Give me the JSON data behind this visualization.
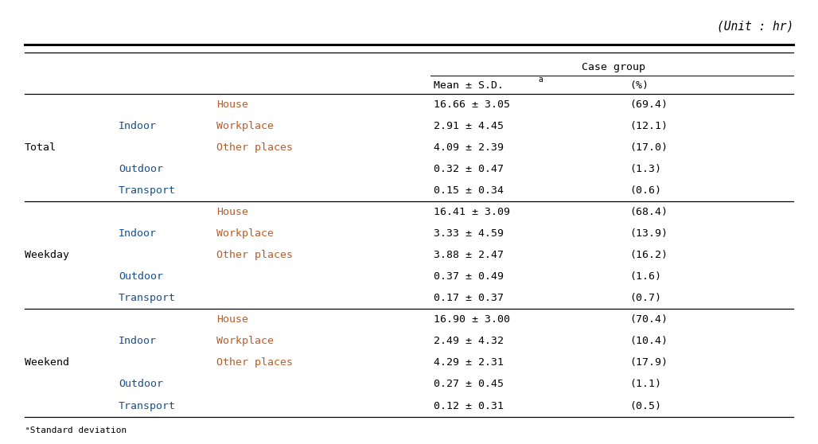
{
  "unit_label": "(Unit : hr)",
  "case_group_label": "Case group",
  "sd_superscript": "a",
  "rows": [
    {
      "group": "Total",
      "sub1": "",
      "sub2": "House",
      "mean_sd": "16.66 ± 3.05",
      "pct": "(69.4)"
    },
    {
      "group": "",
      "sub1": "Indoor",
      "sub2": "Workplace",
      "mean_sd": "2.91 ± 4.45",
      "pct": "(12.1)"
    },
    {
      "group": "",
      "sub1": "",
      "sub2": "Other places",
      "mean_sd": "4.09 ± 2.39",
      "pct": "(17.0)"
    },
    {
      "group": "",
      "sub1": "Outdoor",
      "sub2": "",
      "mean_sd": "0.32 ± 0.47",
      "pct": "(1.3)"
    },
    {
      "group": "",
      "sub1": "Transport",
      "sub2": "",
      "mean_sd": "0.15 ± 0.34",
      "pct": "(0.6)"
    },
    {
      "group": "Weekday",
      "sub1": "",
      "sub2": "House",
      "mean_sd": "16.41 ± 3.09",
      "pct": "(68.4)"
    },
    {
      "group": "",
      "sub1": "Indoor",
      "sub2": "Workplace",
      "mean_sd": "3.33 ± 4.59",
      "pct": "(13.9)"
    },
    {
      "group": "",
      "sub1": "",
      "sub2": "Other places",
      "mean_sd": "3.88 ± 2.47",
      "pct": "(16.2)"
    },
    {
      "group": "",
      "sub1": "Outdoor",
      "sub2": "",
      "mean_sd": "0.37 ± 0.49",
      "pct": "(1.6)"
    },
    {
      "group": "",
      "sub1": "Transport",
      "sub2": "",
      "mean_sd": "0.17 ± 0.37",
      "pct": "(0.7)"
    },
    {
      "group": "Weekend",
      "sub1": "",
      "sub2": "House",
      "mean_sd": "16.90 ± 3.00",
      "pct": "(70.4)"
    },
    {
      "group": "",
      "sub1": "Indoor",
      "sub2": "Workplace",
      "mean_sd": "2.49 ± 4.32",
      "pct": "(10.4)"
    },
    {
      "group": "",
      "sub1": "",
      "sub2": "Other places",
      "mean_sd": "4.29 ± 2.31",
      "pct": "(17.9)"
    },
    {
      "group": "",
      "sub1": "Outdoor",
      "sub2": "",
      "mean_sd": "0.27 ± 0.45",
      "pct": "(1.1)"
    },
    {
      "group": "",
      "sub1": "Transport",
      "sub2": "",
      "mean_sd": "0.12 ± 0.31",
      "pct": "(0.5)"
    }
  ],
  "footnote": "ᵃStandard deviation",
  "colors": {
    "background": "#ffffff",
    "text_black": "#000000",
    "text_blue": "#1a4f8a",
    "text_orange": "#b85c2a",
    "line_color": "#000000"
  },
  "font_size": 9.5,
  "font_size_small": 7.0,
  "font_size_unit": 10.5,
  "font_size_footnote": 8.0
}
